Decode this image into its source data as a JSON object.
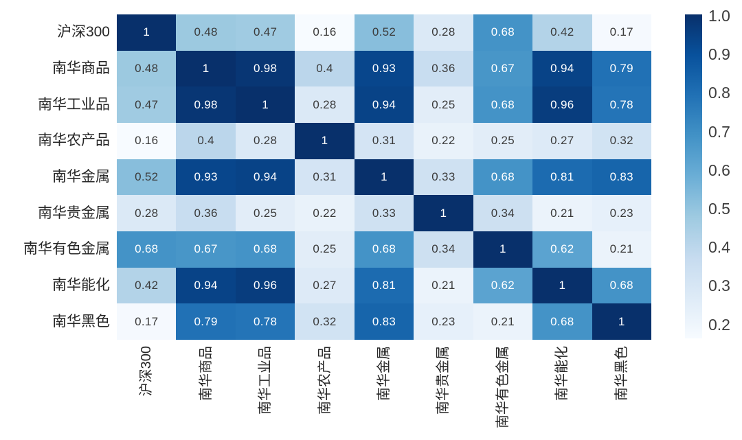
{
  "chart_data": {
    "type": "heatmap",
    "title": "",
    "xlabel": "",
    "ylabel": "",
    "categories": [
      "沪深300",
      "南华商品",
      "南华工业品",
      "南华农产品",
      "南华金属",
      "南华贵金属",
      "南华有色金属",
      "南华能化",
      "南华黑色"
    ],
    "matrix": [
      [
        1,
        0.48,
        0.47,
        0.16,
        0.52,
        0.28,
        0.68,
        0.42,
        0.17
      ],
      [
        0.48,
        1,
        0.98,
        0.4,
        0.93,
        0.36,
        0.67,
        0.94,
        0.79
      ],
      [
        0.47,
        0.98,
        1,
        0.28,
        0.94,
        0.25,
        0.68,
        0.96,
        0.78
      ],
      [
        0.16,
        0.4,
        0.28,
        1,
        0.31,
        0.22,
        0.25,
        0.27,
        0.32
      ],
      [
        0.52,
        0.93,
        0.94,
        0.31,
        1,
        0.33,
        0.68,
        0.81,
        0.83
      ],
      [
        0.28,
        0.36,
        0.25,
        0.22,
        0.33,
        1,
        0.34,
        0.21,
        0.23
      ],
      [
        0.68,
        0.67,
        0.68,
        0.25,
        0.68,
        0.34,
        1,
        0.62,
        0.21
      ],
      [
        0.42,
        0.94,
        0.96,
        0.27,
        0.81,
        0.21,
        0.62,
        1,
        0.68
      ],
      [
        0.17,
        0.79,
        0.78,
        0.32,
        0.83,
        0.23,
        0.21,
        0.68,
        1
      ]
    ],
    "vmin": 0.16,
    "vmax": 1.0,
    "colormap": {
      "name": "Blues",
      "stops": [
        "#f7fbff",
        "#deebf7",
        "#c6dbef",
        "#9ecae1",
        "#6baed6",
        "#4292c6",
        "#2171b5",
        "#08519c",
        "#08306b"
      ]
    },
    "annotation_text_colors": {
      "on_dark": "#ffffff",
      "on_light": "#3b3b3b"
    },
    "axis_label_color": "#262626",
    "colorbar": {
      "position": "right",
      "tick_labels": [
        "1.0",
        "0.9",
        "0.8",
        "0.7",
        "0.6",
        "0.5",
        "0.4",
        "0.3",
        "0.2"
      ],
      "tick_color": "#3d3d3d"
    },
    "grid": false,
    "legend_position": "right-colorbar"
  }
}
